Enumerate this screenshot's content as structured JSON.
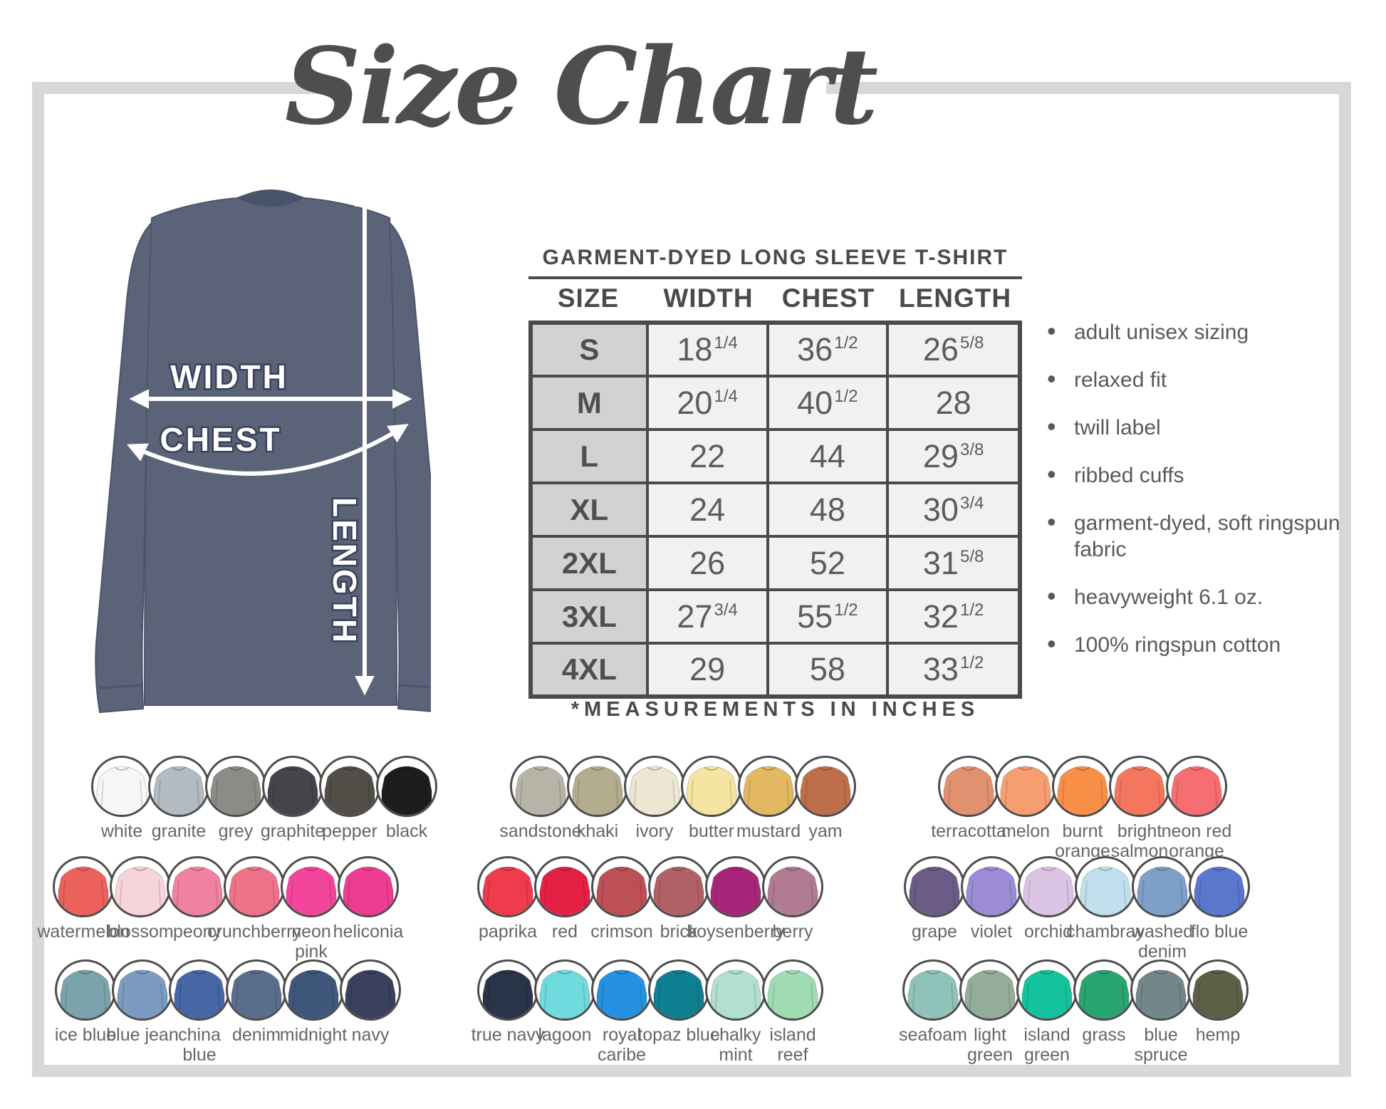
{
  "title": "Size Chart",
  "diagram": {
    "width_label": "WIDTH",
    "chest_label": "CHEST",
    "length_label": "LENGTH",
    "shirt_color": "#5a6377",
    "collar_color": "#49536a",
    "arrow_color": "#ffffff"
  },
  "product": {
    "heading": "GARMENT-DYED LONG SLEEVE T-SHIRT",
    "columns": [
      "SIZE",
      "WIDTH",
      "CHEST",
      "LENGTH"
    ],
    "rows": [
      {
        "size": "S",
        "width": [
          "18",
          "1/4"
        ],
        "chest": [
          "36",
          "1/2"
        ],
        "length": [
          "26",
          "5/8"
        ]
      },
      {
        "size": "M",
        "width": [
          "20",
          "1/4"
        ],
        "chest": [
          "40",
          "1/2"
        ],
        "length": [
          "28",
          ""
        ]
      },
      {
        "size": "L",
        "width": [
          "22",
          ""
        ],
        "chest": [
          "44",
          ""
        ],
        "length": [
          "29",
          "3/8"
        ]
      },
      {
        "size": "XL",
        "width": [
          "24",
          ""
        ],
        "chest": [
          "48",
          ""
        ],
        "length": [
          "30",
          "3/4"
        ]
      },
      {
        "size": "2XL",
        "width": [
          "26",
          ""
        ],
        "chest": [
          "52",
          ""
        ],
        "length": [
          "31",
          "5/8"
        ]
      },
      {
        "size": "3XL",
        "width": [
          "27",
          "3/4"
        ],
        "chest": [
          "55",
          "1/2"
        ],
        "length": [
          "32",
          "1/2"
        ]
      },
      {
        "size": "4XL",
        "width": [
          "29",
          ""
        ],
        "chest": [
          "58",
          ""
        ],
        "length": [
          "33",
          "1/2"
        ]
      }
    ],
    "footnote": "*MEASUREMENTS IN INCHES"
  },
  "features": [
    "adult unisex sizing",
    "relaxed fit",
    "twill label",
    "ribbed cuffs",
    "garment-dyed, soft ringspun fabric",
    "heavyweight 6.1 oz.",
    "100% ringspun cotton"
  ],
  "swatches": {
    "rows": [
      {
        "groups": [
          [
            {
              "name": [
                "white"
              ],
              "color": "#f6f6f4"
            },
            {
              "name": [
                "granite"
              ],
              "color": "#b2bbc1"
            },
            {
              "name": [
                "grey"
              ],
              "color": "#8c8b86"
            },
            {
              "name": [
                "graphite"
              ],
              "color": "#46434a"
            },
            {
              "name": [
                "pepper"
              ],
              "color": "#514d47"
            },
            {
              "name": [
                "black"
              ],
              "color": "#1d1d1f"
            }
          ],
          [
            {
              "name": [
                "sandstone"
              ],
              "color": "#b6b3a7"
            },
            {
              "name": [
                "khaki"
              ],
              "color": "#b3ac8e"
            },
            {
              "name": [
                "ivory"
              ],
              "color": "#eee6d3"
            },
            {
              "name": [
                "butter"
              ],
              "color": "#f6e4a2"
            },
            {
              "name": [
                "mustard"
              ],
              "color": "#e2b961"
            },
            {
              "name": [
                "yam"
              ],
              "color": "#bf6e4b"
            }
          ],
          [
            {
              "name": [
                "terracotta"
              ],
              "color": "#e29170"
            },
            {
              "name": [
                "melon"
              ],
              "color": "#f79e70"
            },
            {
              "name": [
                "burnt",
                "orange"
              ],
              "color": "#f88f47"
            },
            {
              "name": [
                "bright",
                "salmon"
              ],
              "color": "#f5765f"
            },
            {
              "name": [
                "neon red",
                "orange"
              ],
              "color": "#f66e71"
            }
          ]
        ]
      },
      {
        "groups": [
          [
            {
              "name": [
                "watermelon"
              ],
              "color": "#ec615a"
            },
            {
              "name": [
                "blossom"
              ],
              "color": "#f7d3da"
            },
            {
              "name": [
                "peony"
              ],
              "color": "#f081a1"
            },
            {
              "name": [
                "crunchberry"
              ],
              "color": "#ee7388"
            },
            {
              "name": [
                "neon",
                "pink"
              ],
              "color": "#f4459d"
            },
            {
              "name": [
                "heliconia"
              ],
              "color": "#ee3c90"
            }
          ],
          [
            {
              "name": [
                "paprika"
              ],
              "color": "#ee3b4d"
            },
            {
              "name": [
                "red"
              ],
              "color": "#e42145"
            },
            {
              "name": [
                "crimson"
              ],
              "color": "#bd4f56"
            },
            {
              "name": [
                "brick"
              ],
              "color": "#b16166"
            },
            {
              "name": [
                "boysenberry"
              ],
              "color": "#a8267a"
            },
            {
              "name": [
                "berry"
              ],
              "color": "#b07b93"
            }
          ],
          [
            {
              "name": [
                "grape"
              ],
              "color": "#6a5c87"
            },
            {
              "name": [
                "violet"
              ],
              "color": "#9c8bd5"
            },
            {
              "name": [
                "orchid"
              ],
              "color": "#dcc4e4"
            },
            {
              "name": [
                "chambray"
              ],
              "color": "#c1e0ee"
            },
            {
              "name": [
                "washed",
                "denim"
              ],
              "color": "#7d9fc8"
            },
            {
              "name": [
                "flo blue"
              ],
              "color": "#5a77cd"
            }
          ]
        ]
      },
      {
        "groups": [
          [
            {
              "name": [
                "ice blue"
              ],
              "color": "#7ba3ab"
            },
            {
              "name": [
                "blue jean"
              ],
              "color": "#7c9bc0"
            },
            {
              "name": [
                "china",
                "blue"
              ],
              "color": "#4766a4"
            },
            {
              "name": [
                "denim"
              ],
              "color": "#5a6e8c"
            },
            {
              "name": [
                "midnight"
              ],
              "color": "#3e577b"
            },
            {
              "name": [
                "navy"
              ],
              "color": "#39415c"
            }
          ],
          [
            {
              "name": [
                "true navy"
              ],
              "color": "#2a3449"
            },
            {
              "name": [
                "lagoon"
              ],
              "color": "#6fdbdf"
            },
            {
              "name": [
                "royal",
                "caribe"
              ],
              "color": "#2492e0"
            },
            {
              "name": [
                "topaz blue"
              ],
              "color": "#0f8091"
            },
            {
              "name": [
                "chalky",
                "mint"
              ],
              "color": "#b1e0d3"
            },
            {
              "name": [
                "island",
                "reef"
              ],
              "color": "#9fdcb2"
            }
          ],
          [
            {
              "name": [
                "seafoam"
              ],
              "color": "#8fc3b9"
            },
            {
              "name": [
                "light",
                "green"
              ],
              "color": "#93ad98"
            },
            {
              "name": [
                "island",
                "green"
              ],
              "color": "#14c39e"
            },
            {
              "name": [
                "grass"
              ],
              "color": "#2aa571"
            },
            {
              "name": [
                "blue",
                "spruce"
              ],
              "color": "#73878a"
            },
            {
              "name": [
                "hemp"
              ],
              "color": "#5d5f46"
            }
          ]
        ]
      }
    ]
  }
}
